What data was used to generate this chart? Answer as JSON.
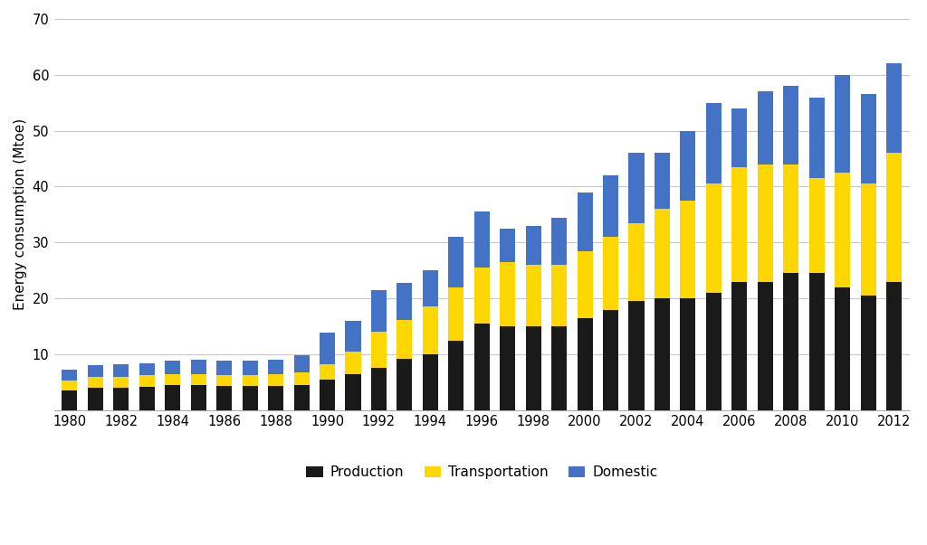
{
  "years": [
    1980,
    1981,
    1982,
    1983,
    1984,
    1985,
    1986,
    1987,
    1988,
    1989,
    1990,
    1991,
    1992,
    1993,
    1994,
    1995,
    1996,
    1997,
    1998,
    1999,
    2000,
    2001,
    2002,
    2003,
    2004,
    2005,
    2006,
    2007,
    2008,
    2009,
    2010,
    2011,
    2012
  ],
  "production": [
    3.5,
    4.0,
    4.0,
    4.2,
    4.5,
    4.5,
    4.3,
    4.3,
    4.4,
    4.5,
    5.5,
    6.5,
    7.5,
    9.2,
    10.0,
    12.5,
    15.5,
    15.0,
    15.0,
    15.0,
    16.5,
    18.0,
    19.5,
    20.0,
    20.0,
    21.0,
    23.0,
    23.0,
    24.5,
    24.5,
    22.0,
    20.5,
    23.0
  ],
  "transportation": [
    1.8,
    2.0,
    2.0,
    2.0,
    2.0,
    2.0,
    2.0,
    2.0,
    2.1,
    2.3,
    2.8,
    4.0,
    6.5,
    7.0,
    8.5,
    9.5,
    10.0,
    11.5,
    11.0,
    11.0,
    12.0,
    13.0,
    14.0,
    16.0,
    17.5,
    19.5,
    20.5,
    21.0,
    19.5,
    17.0,
    20.5,
    20.0,
    23.0
  ],
  "domestic": [
    2.0,
    2.0,
    2.2,
    2.2,
    2.3,
    2.5,
    2.5,
    2.5,
    2.6,
    3.0,
    5.5,
    5.5,
    7.5,
    6.5,
    6.5,
    9.0,
    10.0,
    6.0,
    7.0,
    8.5,
    10.5,
    11.0,
    12.5,
    10.0,
    12.5,
    14.5,
    10.5,
    13.0,
    14.0,
    14.5,
    17.5,
    16.0,
    16.0
  ],
  "colors": {
    "production": "#1a1a1a",
    "transportation": "#FFD700",
    "domestic": "#4472C4"
  },
  "ylabel": "Energy consumption (Mtoe)",
  "ylim": [
    0,
    70
  ],
  "yticks": [
    10,
    20,
    30,
    40,
    50,
    60,
    70
  ],
  "legend_labels": [
    "Production",
    "Transportation",
    "Domestic"
  ],
  "background_color": "#ffffff",
  "grid_color": "#c8c8c8"
}
